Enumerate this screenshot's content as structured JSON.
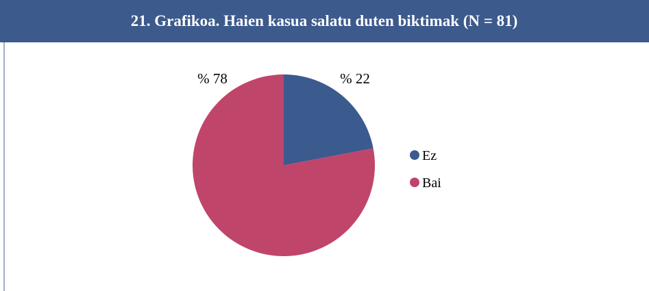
{
  "chart_data": {
    "type": "pie",
    "title": "21. Grafikoa. Haien kasua salatu duten biktimak (N = 81)",
    "categories": [
      "Ez",
      "Bai"
    ],
    "values": [
      22,
      78
    ],
    "value_labels": [
      "% 22",
      "% 78"
    ],
    "colors": [
      "#3b5a8e",
      "#c0456a"
    ],
    "legend": "right"
  }
}
